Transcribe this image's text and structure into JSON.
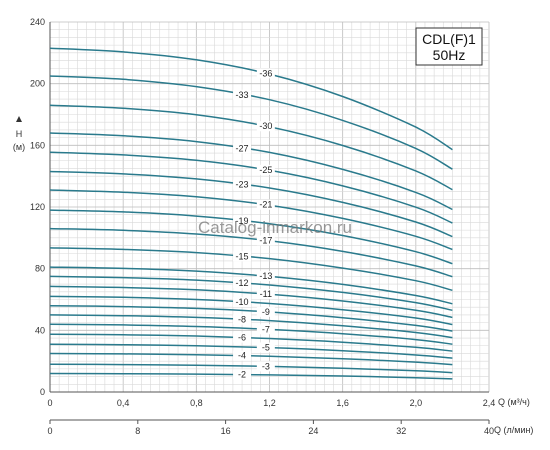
{
  "chart_data": {
    "type": "line",
    "title_line1": "CDL(F)1",
    "title_line2": "50Hz",
    "watermark": "Catalog-inmarkon.ru",
    "ylabel_line1": "H",
    "ylabel_line2": "(м)",
    "xlabel": "Q (м³/ч)",
    "x2label": "Q (л/мин)",
    "xlim": [
      0,
      2.4
    ],
    "ylim": [
      0,
      240
    ],
    "x_ticks": [
      "0",
      "0,4",
      "0,8",
      "1,2",
      "1,6",
      "2,0",
      "2,4"
    ],
    "x2_ticks": [
      "0",
      "8",
      "16",
      "24",
      "32",
      "40"
    ],
    "y_ticks": [
      "0",
      "40",
      "80",
      "120",
      "160",
      "200",
      "240"
    ],
    "grid": true,
    "curve_color": "#2a7a8c",
    "series": [
      {
        "name": "-2",
        "label_x": 1.05,
        "points": [
          [
            0,
            12
          ],
          [
            0.4,
            11.9
          ],
          [
            0.8,
            11.6
          ],
          [
            1.2,
            11.1
          ],
          [
            1.6,
            10.4
          ],
          [
            2.0,
            9.3
          ],
          [
            2.2,
            8.5
          ]
        ]
      },
      {
        "name": "-3",
        "label_x": 1.18,
        "points": [
          [
            0,
            18
          ],
          [
            0.4,
            17.8
          ],
          [
            0.8,
            17.4
          ],
          [
            1.2,
            16.6
          ],
          [
            1.6,
            15.4
          ],
          [
            2.0,
            13.8
          ],
          [
            2.2,
            12.6
          ]
        ]
      },
      {
        "name": "-4",
        "label_x": 1.05,
        "points": [
          [
            0,
            25
          ],
          [
            0.4,
            24.7
          ],
          [
            0.8,
            24.2
          ],
          [
            1.2,
            23.2
          ],
          [
            1.6,
            21.6
          ],
          [
            2.0,
            19.4
          ],
          [
            2.2,
            17.8
          ]
        ]
      },
      {
        "name": "-5",
        "label_x": 1.18,
        "points": [
          [
            0,
            31
          ],
          [
            0.4,
            30.7
          ],
          [
            0.8,
            30.0
          ],
          [
            1.2,
            28.8
          ],
          [
            1.6,
            26.8
          ],
          [
            2.0,
            24.0
          ],
          [
            2.2,
            22.0
          ]
        ]
      },
      {
        "name": "-6",
        "label_x": 1.05,
        "points": [
          [
            0,
            37.5
          ],
          [
            0.4,
            37.1
          ],
          [
            0.8,
            36.3
          ],
          [
            1.2,
            34.7
          ],
          [
            1.6,
            32.3
          ],
          [
            2.0,
            29.0
          ],
          [
            2.2,
            26.5
          ]
        ]
      },
      {
        "name": "-7",
        "label_x": 1.18,
        "points": [
          [
            0,
            44
          ],
          [
            0.4,
            43.5
          ],
          [
            0.8,
            42.5
          ],
          [
            1.2,
            40.6
          ],
          [
            1.6,
            37.8
          ],
          [
            2.0,
            34.0
          ],
          [
            2.2,
            31.0
          ]
        ]
      },
      {
        "name": "-8",
        "label_x": 1.05,
        "points": [
          [
            0,
            50
          ],
          [
            0.4,
            49.5
          ],
          [
            0.8,
            48.4
          ],
          [
            1.2,
            46.3
          ],
          [
            1.6,
            43.0
          ],
          [
            2.0,
            38.6
          ],
          [
            2.2,
            35.3
          ]
        ]
      },
      {
        "name": "-9",
        "label_x": 1.18,
        "points": [
          [
            0,
            56
          ],
          [
            0.4,
            55.4
          ],
          [
            0.8,
            54.2
          ],
          [
            1.2,
            51.9
          ],
          [
            1.6,
            48.2
          ],
          [
            2.0,
            43.2
          ],
          [
            2.2,
            39.5
          ]
        ]
      },
      {
        "name": "-10",
        "label_x": 1.05,
        "points": [
          [
            0,
            62
          ],
          [
            0.4,
            61.4
          ],
          [
            0.8,
            60.0
          ],
          [
            1.2,
            57.4
          ],
          [
            1.6,
            53.4
          ],
          [
            2.0,
            48.0
          ],
          [
            2.2,
            43.8
          ]
        ]
      },
      {
        "name": "-11",
        "label_x": 1.18,
        "points": [
          [
            0,
            68.5
          ],
          [
            0.4,
            67.8
          ],
          [
            0.8,
            66.3
          ],
          [
            1.2,
            63.4
          ],
          [
            1.6,
            59.0
          ],
          [
            2.0,
            53.0
          ],
          [
            2.2,
            48.4
          ]
        ]
      },
      {
        "name": "-12",
        "label_x": 1.05,
        "points": [
          [
            0,
            75
          ],
          [
            0.4,
            74.2
          ],
          [
            0.8,
            72.6
          ],
          [
            1.2,
            69.4
          ],
          [
            1.6,
            64.6
          ],
          [
            2.0,
            58.0
          ],
          [
            2.2,
            53.0
          ]
        ]
      },
      {
        "name": "-13",
        "label_x": 1.18,
        "points": [
          [
            0,
            81
          ],
          [
            0.4,
            80.2
          ],
          [
            0.8,
            78.4
          ],
          [
            1.2,
            75.0
          ],
          [
            1.6,
            69.8
          ],
          [
            2.0,
            62.6
          ],
          [
            2.2,
            57.2
          ]
        ]
      },
      {
        "name": "-15",
        "label_x": 1.05,
        "points": [
          [
            0,
            93.5
          ],
          [
            0.4,
            92.5
          ],
          [
            0.8,
            90.4
          ],
          [
            1.2,
            86.5
          ],
          [
            1.6,
            80.4
          ],
          [
            2.0,
            72.2
          ],
          [
            2.2,
            66.0
          ]
        ]
      },
      {
        "name": "-17",
        "label_x": 1.18,
        "points": [
          [
            0,
            106
          ],
          [
            0.4,
            104.9
          ],
          [
            0.8,
            102.5
          ],
          [
            1.2,
            98.1
          ],
          [
            1.6,
            91.2
          ],
          [
            2.0,
            81.8
          ],
          [
            2.2,
            74.8
          ]
        ]
      },
      {
        "name": "-19",
        "label_x": 1.05,
        "points": [
          [
            0,
            118
          ],
          [
            0.4,
            116.8
          ],
          [
            0.8,
            114.1
          ],
          [
            1.2,
            109.2
          ],
          [
            1.6,
            101.5
          ],
          [
            2.0,
            91.0
          ],
          [
            2.2,
            83.2
          ]
        ]
      },
      {
        "name": "-21",
        "label_x": 1.18,
        "points": [
          [
            0,
            131
          ],
          [
            0.4,
            129.6
          ],
          [
            0.8,
            126.6
          ],
          [
            1.2,
            121.2
          ],
          [
            1.6,
            112.6
          ],
          [
            2.0,
            101.0
          ],
          [
            2.2,
            92.4
          ]
        ]
      },
      {
        "name": "-23",
        "label_x": 1.05,
        "points": [
          [
            0,
            143
          ],
          [
            0.4,
            141.5
          ],
          [
            0.8,
            138.2
          ],
          [
            1.2,
            132.3
          ],
          [
            1.6,
            123.0
          ],
          [
            2.0,
            110.3
          ],
          [
            2.2,
            100.8
          ]
        ]
      },
      {
        "name": "-25",
        "label_x": 1.18,
        "points": [
          [
            0,
            155.5
          ],
          [
            0.4,
            153.8
          ],
          [
            0.8,
            150.3
          ],
          [
            1.2,
            143.8
          ],
          [
            1.6,
            133.7
          ],
          [
            2.0,
            119.9
          ],
          [
            2.2,
            109.6
          ]
        ]
      },
      {
        "name": "-27",
        "label_x": 1.05,
        "points": [
          [
            0,
            168
          ],
          [
            0.4,
            166.2
          ],
          [
            0.8,
            162.4
          ],
          [
            1.2,
            155.4
          ],
          [
            1.6,
            144.4
          ],
          [
            2.0,
            129.5
          ],
          [
            2.2,
            118.4
          ]
        ]
      },
      {
        "name": "-30",
        "label_x": 1.18,
        "points": [
          [
            0,
            186
          ],
          [
            0.4,
            184.0
          ],
          [
            0.8,
            179.8
          ],
          [
            1.2,
            172.0
          ],
          [
            1.6,
            159.9
          ],
          [
            2.0,
            143.4
          ],
          [
            2.2,
            131.2
          ]
        ]
      },
      {
        "name": "-33",
        "label_x": 1.05,
        "points": [
          [
            0,
            205
          ],
          [
            0.4,
            202.8
          ],
          [
            0.8,
            198.1
          ],
          [
            1.2,
            189.6
          ],
          [
            1.6,
            176.2
          ],
          [
            2.0,
            158.0
          ],
          [
            2.2,
            144.5
          ]
        ]
      },
      {
        "name": "-36",
        "label_x": 1.18,
        "points": [
          [
            0,
            223
          ],
          [
            0.4,
            220.6
          ],
          [
            0.8,
            215.5
          ],
          [
            1.2,
            206.2
          ],
          [
            1.6,
            191.7
          ],
          [
            2.0,
            171.8
          ],
          [
            2.2,
            157.2
          ]
        ]
      }
    ]
  }
}
